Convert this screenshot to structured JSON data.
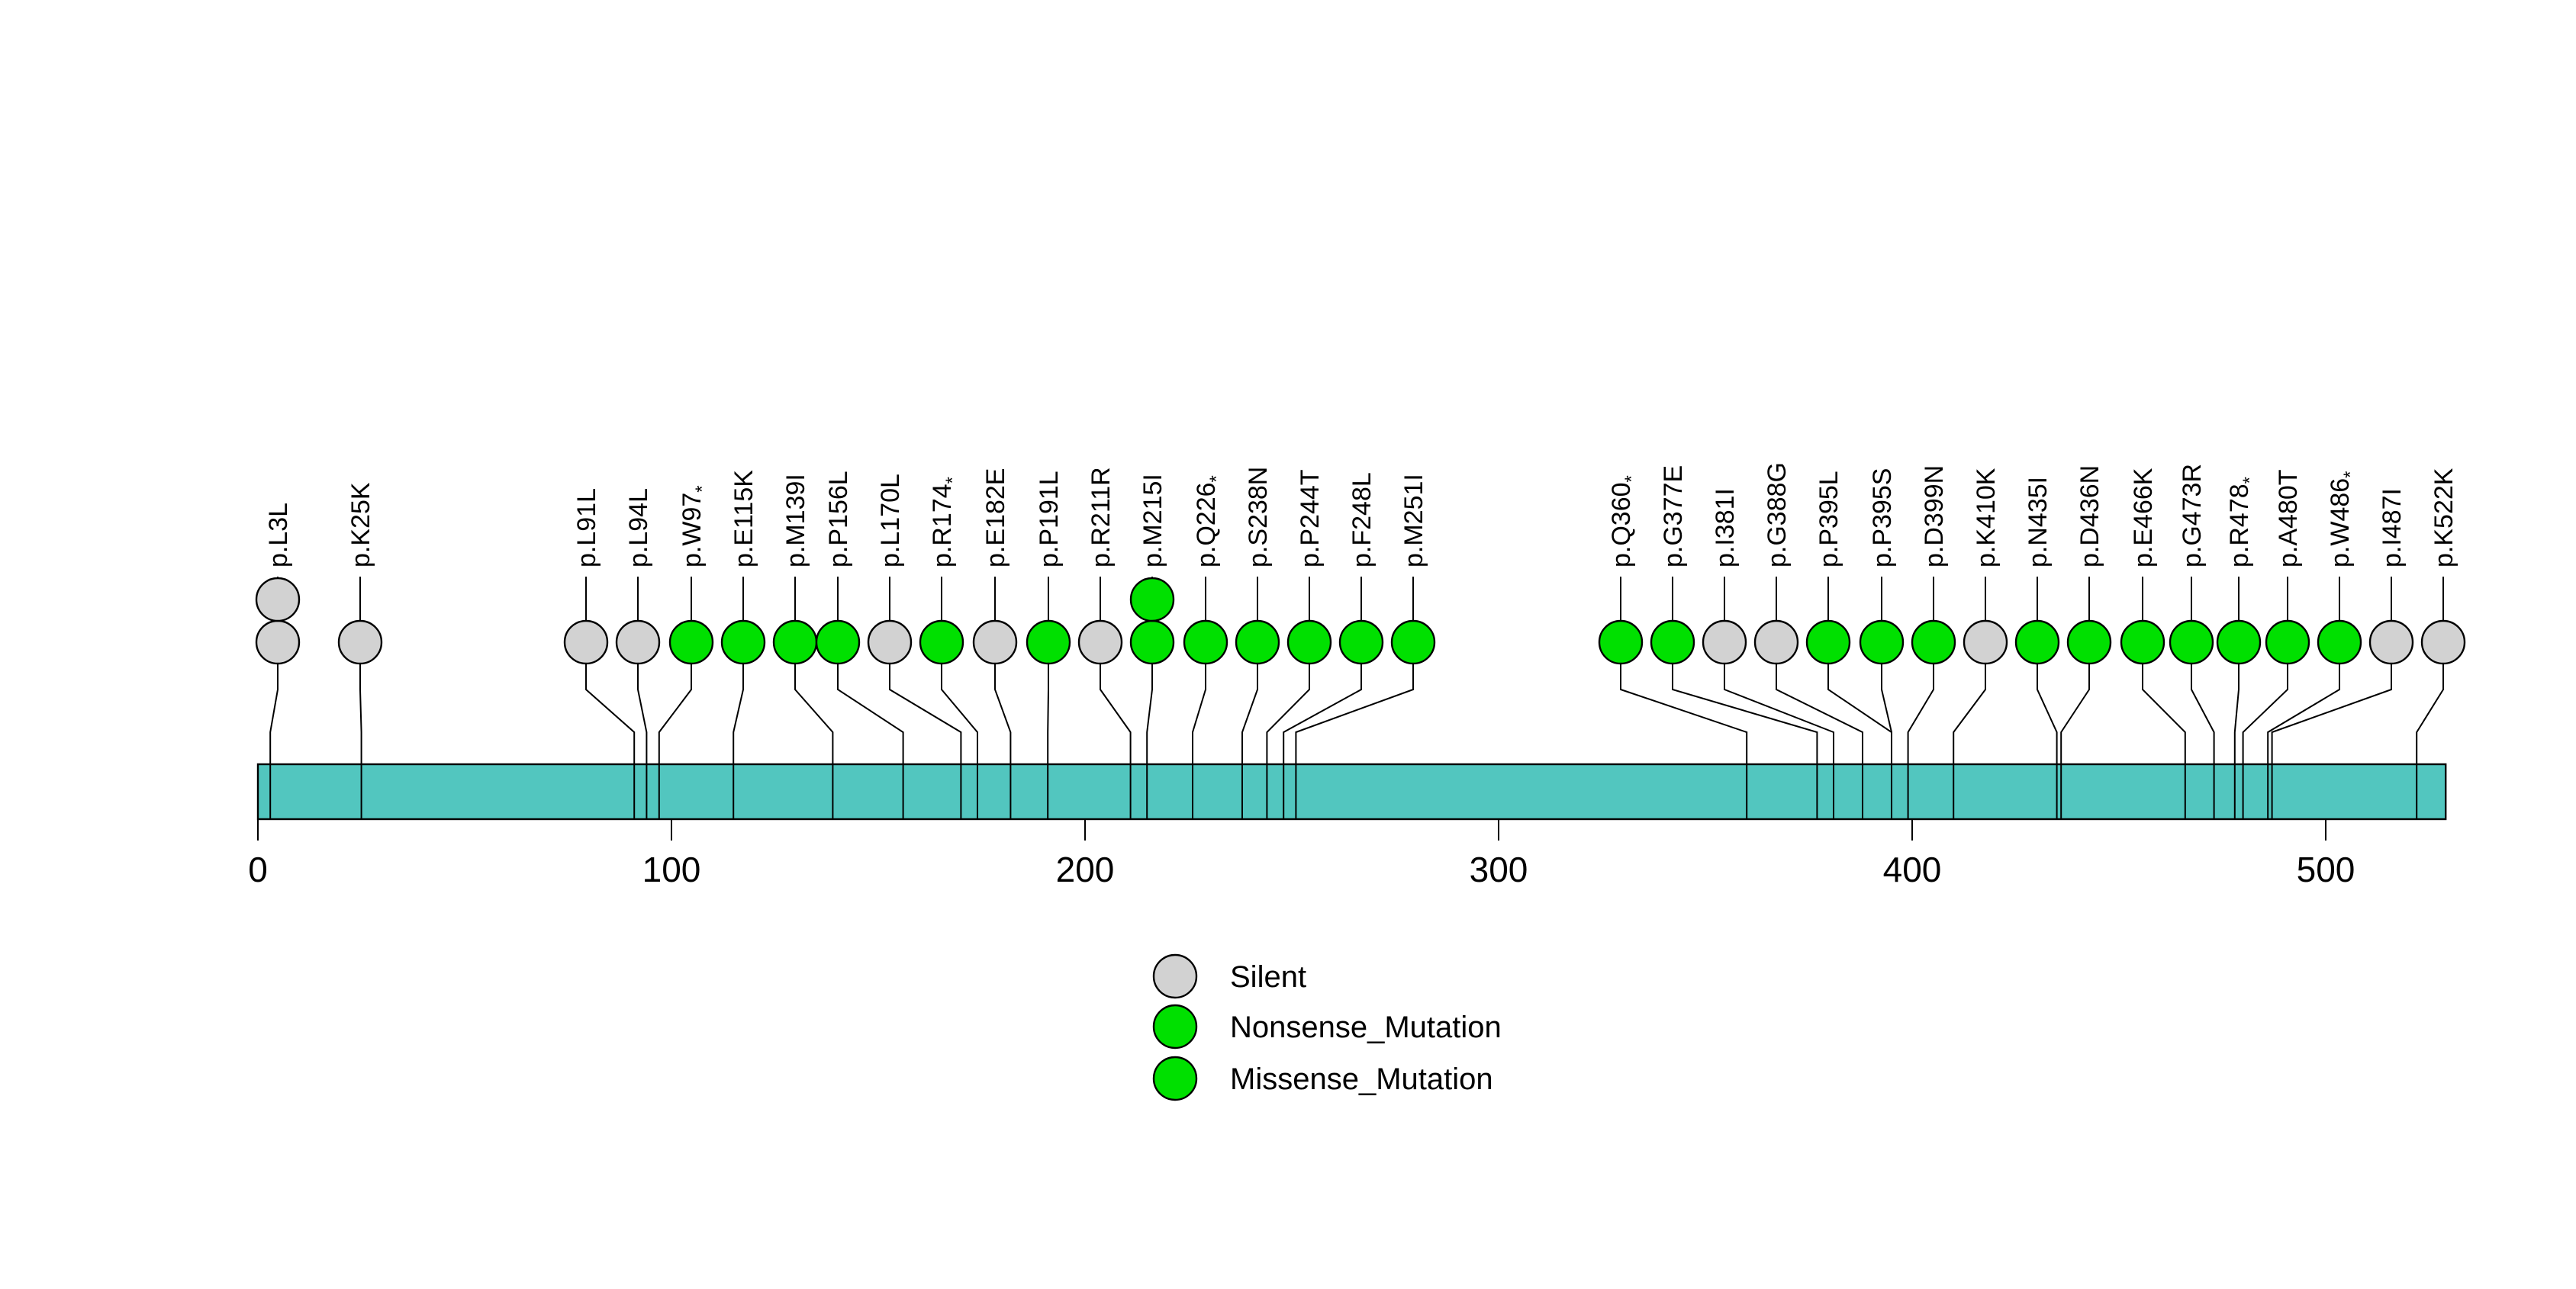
{
  "figure": {
    "background": "#ffffff"
  },
  "chart_data": {
    "type": "lollipop",
    "description": "Protein mutation lollipop plot with amino-acid change labels above stems, a protein backbone bar, and a mutation-type legend",
    "protein_length": 529,
    "xlim": [
      0,
      529
    ],
    "axis_ticks": [
      "0",
      "100",
      "200",
      "300",
      "400",
      "500"
    ],
    "grid": false,
    "legend_position": "bottom-center",
    "colors": {
      "Silent": "#d2d2d2",
      "Nonsense_Mutation": "#00e000",
      "Missense_Mutation": "#00e000",
      "protein_bar": "#52c6bf",
      "outline": "#000000"
    },
    "legend": [
      {
        "label": "Silent",
        "color": "#d2d2d2"
      },
      {
        "label": "Nonsense_Mutation",
        "color": "#00e000"
      },
      {
        "label": "Missense_Mutation",
        "color": "#00e000"
      }
    ],
    "mutations": [
      {
        "label": "p.L3L",
        "pos": 3,
        "type": "Silent",
        "count": 2,
        "cx": 182
      },
      {
        "label": "p.K25K",
        "pos": 25,
        "type": "Silent",
        "count": 1,
        "cx": 236
      },
      {
        "label": "p.L91L",
        "pos": 91,
        "type": "Silent",
        "count": 1,
        "cx": 384
      },
      {
        "label": "p.L94L",
        "pos": 94,
        "type": "Silent",
        "count": 1,
        "cx": 418
      },
      {
        "label": "p.W97*",
        "pos": 97,
        "type": "Nonsense_Mutation",
        "count": 1,
        "cx": 453
      },
      {
        "label": "p.E115K",
        "pos": 115,
        "type": "Missense_Mutation",
        "count": 1,
        "cx": 487
      },
      {
        "label": "p.M139I",
        "pos": 139,
        "type": "Missense_Mutation",
        "count": 1,
        "cx": 521
      },
      {
        "label": "p.P156L",
        "pos": 156,
        "type": "Missense_Mutation",
        "count": 1,
        "cx": 549
      },
      {
        "label": "p.L170L",
        "pos": 170,
        "type": "Silent",
        "count": 1,
        "cx": 583
      },
      {
        "label": "p.R174*",
        "pos": 174,
        "type": "Nonsense_Mutation",
        "count": 1,
        "cx": 617
      },
      {
        "label": "p.E182E",
        "pos": 182,
        "type": "Silent",
        "count": 1,
        "cx": 652
      },
      {
        "label": "p.P191L",
        "pos": 191,
        "type": "Missense_Mutation",
        "count": 1,
        "cx": 687
      },
      {
        "label": "p.R211R",
        "pos": 211,
        "type": "Silent",
        "count": 1,
        "cx": 721
      },
      {
        "label": "p.M215I",
        "pos": 215,
        "type": "Missense_Mutation",
        "count": 2,
        "cx": 755
      },
      {
        "label": "p.Q226*",
        "pos": 226,
        "type": "Nonsense_Mutation",
        "count": 1,
        "cx": 790
      },
      {
        "label": "p.S238N",
        "pos": 238,
        "type": "Missense_Mutation",
        "count": 1,
        "cx": 824
      },
      {
        "label": "p.P244T",
        "pos": 244,
        "type": "Missense_Mutation",
        "count": 1,
        "cx": 858
      },
      {
        "label": "p.F248L",
        "pos": 248,
        "type": "Missense_Mutation",
        "count": 1,
        "cx": 892
      },
      {
        "label": "p.M251I",
        "pos": 251,
        "type": "Missense_Mutation",
        "count": 1,
        "cx": 926
      },
      {
        "label": "p.Q360*",
        "pos": 360,
        "type": "Nonsense_Mutation",
        "count": 1,
        "cx": 1062
      },
      {
        "label": "p.G377E",
        "pos": 377,
        "type": "Missense_Mutation",
        "count": 1,
        "cx": 1096
      },
      {
        "label": "p.I381I",
        "pos": 381,
        "type": "Silent",
        "count": 1,
        "cx": 1130
      },
      {
        "label": "p.G388G",
        "pos": 388,
        "type": "Silent",
        "count": 1,
        "cx": 1164
      },
      {
        "label": "p.P395L",
        "pos": 395,
        "type": "Missense_Mutation",
        "count": 1,
        "cx": 1198
      },
      {
        "label": "p.P395S",
        "pos": 395,
        "type": "Missense_Mutation",
        "count": 1,
        "cx": 1233
      },
      {
        "label": "p.D399N",
        "pos": 399,
        "type": "Missense_Mutation",
        "count": 1,
        "cx": 1267
      },
      {
        "label": "p.K410K",
        "pos": 410,
        "type": "Silent",
        "count": 1,
        "cx": 1301
      },
      {
        "label": "p.N435I",
        "pos": 435,
        "type": "Missense_Mutation",
        "count": 1,
        "cx": 1335
      },
      {
        "label": "p.D436N",
        "pos": 436,
        "type": "Missense_Mutation",
        "count": 1,
        "cx": 1369
      },
      {
        "label": "p.E466K",
        "pos": 466,
        "type": "Missense_Mutation",
        "count": 1,
        "cx": 1404
      },
      {
        "label": "p.G473R",
        "pos": 473,
        "type": "Missense_Mutation",
        "count": 1,
        "cx": 1436
      },
      {
        "label": "p.R478*",
        "pos": 478,
        "type": "Nonsense_Mutation",
        "count": 1,
        "cx": 1467
      },
      {
        "label": "p.A480T",
        "pos": 480,
        "type": "Missense_Mutation",
        "count": 1,
        "cx": 1499
      },
      {
        "label": "p.W486*",
        "pos": 486,
        "type": "Nonsense_Mutation",
        "count": 1,
        "cx": 1533
      },
      {
        "label": "p.I487I",
        "pos": 487,
        "type": "Silent",
        "count": 1,
        "cx": 1567
      },
      {
        "label": "p.K522K",
        "pos": 522,
        "type": "Silent",
        "count": 1,
        "cx": 1601
      }
    ]
  }
}
